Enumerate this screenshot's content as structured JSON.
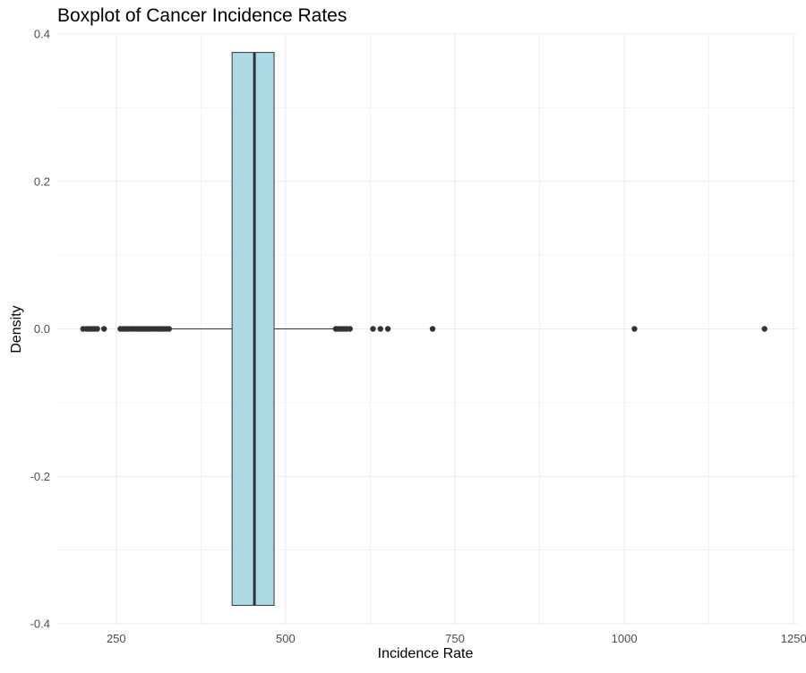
{
  "chart_data": {
    "type": "boxplot",
    "title": "Boxplot of Cancer Incidence Rates",
    "xlabel": "Incidence Rate",
    "ylabel": "Density",
    "xlim": [
      163,
      1255
    ],
    "ylim": [
      -0.4,
      0.4
    ],
    "x_ticks": [
      250,
      500,
      750,
      1000,
      1250
    ],
    "x_tick_labels": [
      "250",
      "500",
      "750",
      "1000",
      "1250"
    ],
    "y_ticks": [
      -0.4,
      -0.2,
      0.0,
      0.2,
      0.4
    ],
    "y_tick_labels": [
      "-0.4",
      "-0.2",
      "0.0",
      "0.2",
      "0.4"
    ],
    "grid": true,
    "box": {
      "q1": 421,
      "median": 454,
      "q3": 483,
      "whisker_low": 330,
      "whisker_high": 573,
      "y_center": 0,
      "y_half_height": 0.375
    },
    "outliers": [
      201,
      206,
      210,
      214,
      218,
      222,
      232,
      256,
      260,
      264,
      268,
      272,
      276,
      280,
      284,
      288,
      292,
      296,
      300,
      304,
      308,
      312,
      316,
      320,
      324,
      328,
      574,
      578,
      582,
      586,
      590,
      595,
      629,
      640,
      651,
      717,
      1015,
      1207
    ],
    "colors": {
      "box_fill": "#add8e6",
      "box_stroke": "#333333",
      "point": "#333333",
      "grid": "#ebebeb"
    }
  }
}
